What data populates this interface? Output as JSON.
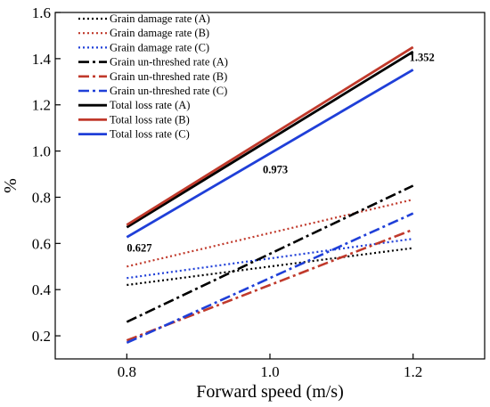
{
  "chart_data": {
    "type": "line",
    "xlabel": "Forward speed (m/s)",
    "ylabel": "%",
    "xlim": [
      0.7,
      1.3
    ],
    "ylim": [
      0.1,
      1.6
    ],
    "x_ticks": [
      0.8,
      1.0,
      1.2
    ],
    "x_tick_labels": [
      "0.8",
      "1.0",
      "1.2"
    ],
    "y_ticks": [
      0.2,
      0.4,
      0.6,
      0.8,
      1.0,
      1.2,
      1.4,
      1.6
    ],
    "y_tick_labels": [
      "0.2",
      "0.4",
      "0.6",
      "0.8",
      "1.0",
      "1.2",
      "1.4",
      "1.6"
    ],
    "grid": false,
    "legend_position": "top-left",
    "x": [
      0.8,
      1.2
    ],
    "series": [
      {
        "name": "Grain damage rate (A)",
        "values": [
          0.42,
          0.58
        ],
        "color": "#000000",
        "style": "dotted"
      },
      {
        "name": "Grain damage rate (B)",
        "values": [
          0.5,
          0.79
        ],
        "color": "#c0392b",
        "style": "dotted"
      },
      {
        "name": "Grain damage rate (C)",
        "values": [
          0.45,
          0.62
        ],
        "color": "#1f3fd8",
        "style": "dotted"
      },
      {
        "name": "Grain un-threshed rate (A)",
        "values": [
          0.26,
          0.85
        ],
        "color": "#000000",
        "style": "dashdot"
      },
      {
        "name": "Grain un-threshed rate (B)",
        "values": [
          0.18,
          0.66
        ],
        "color": "#c0392b",
        "style": "dashdot"
      },
      {
        "name": "Grain un-threshed rate (C)",
        "values": [
          0.17,
          0.73
        ],
        "color": "#1f3fd8",
        "style": "dashdot"
      },
      {
        "name": "Total loss rate (A)",
        "values": [
          0.67,
          1.43
        ],
        "color": "#000000",
        "style": "solid"
      },
      {
        "name": "Total loss rate (B)",
        "values": [
          0.68,
          1.45
        ],
        "color": "#c0392b",
        "style": "solid"
      },
      {
        "name": "Total loss rate (C)",
        "values": [
          0.627,
          1.352
        ],
        "color": "#1f3fd8",
        "style": "solid"
      }
    ],
    "annotations": [
      {
        "text": "0.627",
        "x": 0.8,
        "y": 0.627
      },
      {
        "text": "0.973",
        "x": 1.0,
        "y": 0.973
      },
      {
        "text": "1.352",
        "x": 1.2,
        "y": 1.352
      }
    ]
  }
}
